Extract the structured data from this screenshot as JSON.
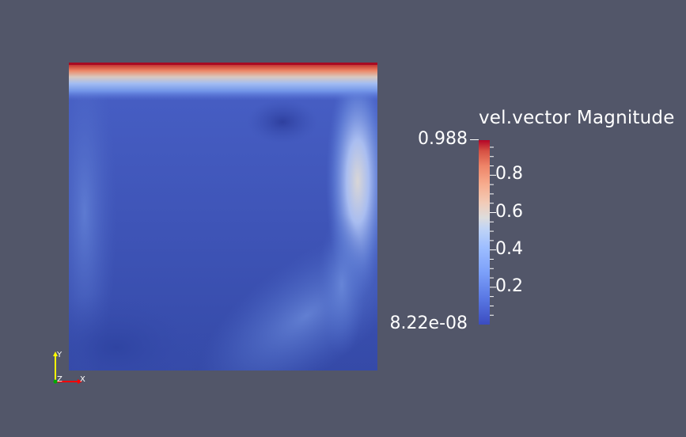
{
  "view": {
    "background_color": "#525669"
  },
  "scalar_bar": {
    "title": "vel.vector Magnitude",
    "range_max_label": "0.988",
    "range_min_label": "8.22e-08",
    "range": [
      8.22e-08,
      0.988
    ],
    "colormap": "Cool to Warm",
    "tick_labels": [
      {
        "value": 0.2,
        "label": "0.2"
      },
      {
        "value": 0.4,
        "label": "0.4"
      },
      {
        "value": 0.6,
        "label": "0.6"
      },
      {
        "value": 0.8,
        "label": "0.8"
      }
    ],
    "colors": {
      "low": "#3b4cc0",
      "mid": "#dddcdc",
      "high": "#b40426"
    }
  },
  "orientation_axes": {
    "x_label": "X",
    "y_label": "Y",
    "z_label": "Z",
    "x_color": "#ff0000",
    "y_color": "#ffff00",
    "z_color": "#00aa00"
  }
}
